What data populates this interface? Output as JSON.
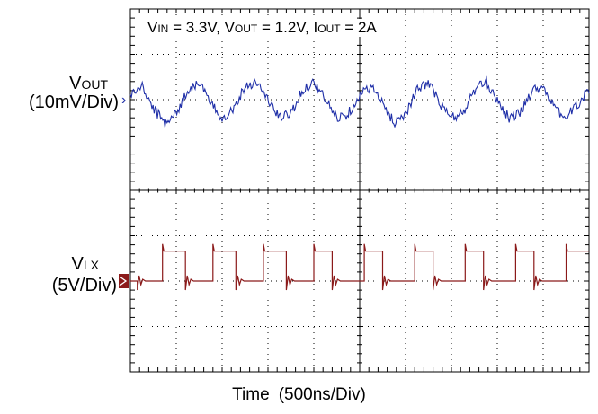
{
  "chart_data": {
    "type": "line",
    "title": "",
    "conditions": {
      "vin_label": "V",
      "vin_sub": "IN",
      "vin_value": " = 3.3V, ",
      "vout_label": "V",
      "vout_sub": "OUT",
      "vout_value": " = 1.2V, ",
      "iout_label": "I",
      "iout_sub": "OUT",
      "iout_value": " = 2A"
    },
    "xlabel": {
      "name": "Time",
      "scale": "(500ns/Div)"
    },
    "x_divisions": 10,
    "y_divisions": 8,
    "grid": true,
    "channels": [
      {
        "name": "V",
        "sub": "OUT",
        "scale": "(10mV/Div)",
        "color": "#1f2fa8",
        "marker": "›",
        "ground_div": 2.0,
        "volts_per_div": 0.01,
        "units": "mV",
        "ripple_period_div": 1.0,
        "ripple_amplitude_mV": 7,
        "x": [
          0,
          0.25,
          0.5,
          0.75,
          1.0,
          1.25,
          1.5,
          1.75,
          2.0,
          2.25,
          2.5,
          2.75,
          3.0,
          3.25,
          3.5,
          3.75,
          4.0,
          4.25,
          4.5,
          4.75,
          5.0,
          5.25,
          5.5,
          5.75,
          6.0,
          6.25,
          6.5,
          6.75,
          7.0,
          7.25,
          7.5,
          7.75,
          8.0,
          8.25,
          8.5,
          8.75,
          9.0,
          9.25,
          9.5,
          9.75,
          10.0
        ],
        "values_mV": [
          1,
          3,
          -2,
          -5,
          -3,
          2,
          4,
          -1,
          -4,
          -2,
          3,
          4,
          0,
          -4,
          -3,
          2,
          4,
          0,
          -4,
          -3,
          1,
          3,
          -1,
          -5,
          -3,
          2,
          4,
          -1,
          -4,
          -3,
          2,
          4,
          0,
          -4,
          -3,
          2,
          3,
          -2,
          -4,
          -1,
          2
        ]
      },
      {
        "name": "V",
        "sub": "LX",
        "scale": "(5V/Div)",
        "color": "#8b1a1a",
        "marker": "▶",
        "ground_div": 6.0,
        "volts_per_div": 5,
        "units": "V",
        "high_level_V": 3.3,
        "low_level_V": 0,
        "rising_edges_div": [
          0.7,
          1.8,
          2.9,
          4.0,
          5.1,
          6.2,
          7.3,
          8.4,
          9.5
        ],
        "falling_edges_div": [
          0.15,
          1.2,
          2.3,
          3.4,
          4.4,
          5.5,
          6.6,
          7.7,
          8.8
        ]
      }
    ]
  }
}
